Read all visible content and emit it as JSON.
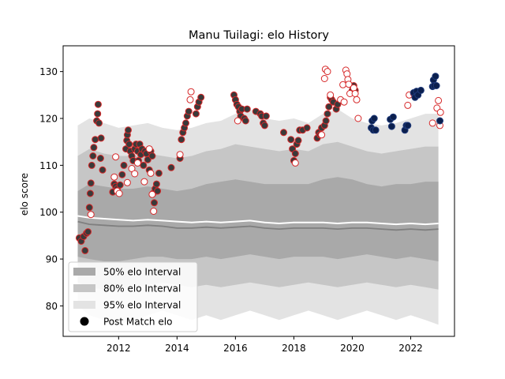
{
  "chart_data": {
    "type": "scatter",
    "title": "Manu Tuilagi: elo History",
    "xlabel": "",
    "ylabel": "elo score",
    "xlim": [
      2010.1,
      2023.5
    ],
    "ylim": [
      73.5,
      135.5
    ],
    "xticks": [
      2012,
      2014,
      2016,
      2018,
      2020,
      2022
    ],
    "yticks": [
      80,
      90,
      100,
      110,
      120,
      130
    ],
    "grid": false,
    "legend_position": "lower-left",
    "legend": [
      {
        "label": "50% elo Interval",
        "color": "#a9a9a9"
      },
      {
        "label": "80% elo Interval",
        "color": "#c6c6c6"
      },
      {
        "label": "95% elo Interval",
        "color": "#e3e3e3"
      },
      {
        "label": "Post Match elo",
        "color": "#000000"
      }
    ],
    "band_x": [
      2010.6,
      2011.0,
      2011.5,
      2012.0,
      2012.5,
      2013.0,
      2013.5,
      2014.0,
      2014.5,
      2015.0,
      2015.5,
      2016.0,
      2016.5,
      2017.0,
      2017.5,
      2018.0,
      2018.5,
      2019.0,
      2019.5,
      2020.0,
      2020.5,
      2021.0,
      2021.5,
      2022.0,
      2022.5,
      2022.95
    ],
    "band_95_upper": [
      118.5,
      120,
      119,
      118,
      118.5,
      119,
      118,
      117.5,
      118,
      119,
      119.5,
      121,
      122,
      120,
      119.5,
      120,
      119,
      121,
      122,
      120,
      119,
      118.5,
      119,
      120,
      121,
      121
    ],
    "band_95_lower": [
      80,
      78,
      77,
      76,
      77,
      78,
      79,
      78,
      77,
      78,
      77,
      78,
      79,
      78,
      77,
      78,
      79,
      78,
      77,
      78,
      79,
      78,
      77,
      78,
      77,
      76
    ],
    "band_80_upper": [
      112,
      113.5,
      112.5,
      112,
      112,
      112.5,
      112,
      111.5,
      112,
      113,
      113.5,
      114.5,
      114,
      113.5,
      113,
      113.5,
      113,
      114.5,
      115,
      114,
      113,
      112.5,
      113,
      113.5,
      114,
      114
    ],
    "band_80_lower": [
      85,
      84,
      83.5,
      83.5,
      84,
      84.5,
      85,
      84.5,
      84,
      84.5,
      84,
      84.5,
      85,
      84.5,
      84,
      84.5,
      85,
      84.5,
      84,
      84.5,
      85,
      84.5,
      84,
      84.5,
      84,
      83.5
    ],
    "band_50_upper": [
      104.5,
      106,
      105.5,
      105,
      105,
      105.5,
      105,
      104.5,
      105,
      106,
      106.5,
      107,
      106.5,
      106,
      106,
      106,
      106,
      107,
      107.5,
      107,
      106,
      105.5,
      106,
      106,
      106.5,
      106.5
    ],
    "band_50_lower": [
      90.5,
      90,
      89.5,
      89.5,
      90,
      90.5,
      90.5,
      90,
      90,
      90.5,
      90,
      90.5,
      91,
      90.5,
      90,
      90.5,
      90.5,
      90.5,
      90,
      90.5,
      91,
      90.5,
      90,
      90.5,
      90,
      89.5
    ],
    "median_line": [
      98,
      97.4,
      97.2,
      97.0,
      97.0,
      97.2,
      97.0,
      96.6,
      96.6,
      96.8,
      96.6,
      96.8,
      97.0,
      96.6,
      96.4,
      96.6,
      96.6,
      96.6,
      96.4,
      96.6,
      96.6,
      96.4,
      96.2,
      96.4,
      96.2,
      96.4
    ],
    "mean_line": [
      99.2,
      98.8,
      98.6,
      98.4,
      98.2,
      98.4,
      98.2,
      98.0,
      97.8,
      98.0,
      97.8,
      98.0,
      98.2,
      97.8,
      97.6,
      97.8,
      97.8,
      97.8,
      97.6,
      97.8,
      97.8,
      97.6,
      97.4,
      97.6,
      97.4,
      97.6
    ],
    "series": [
      {
        "marker": "filled-dark-grey",
        "points": [
          [
            2010.65,
            94.5
          ],
          [
            2010.72,
            93.8
          ],
          [
            2010.8,
            94.8
          ],
          [
            2010.85,
            91.8
          ],
          [
            2010.9,
            95.5
          ],
          [
            2010.95,
            95.8
          ],
          [
            2011.0,
            101
          ],
          [
            2011.03,
            104
          ],
          [
            2011.05,
            106.2
          ],
          [
            2011.08,
            110
          ],
          [
            2011.12,
            112
          ],
          [
            2011.15,
            113.8
          ],
          [
            2011.2,
            115.5
          ],
          [
            2011.25,
            119.5
          ],
          [
            2011.28,
            121
          ],
          [
            2011.3,
            123
          ],
          [
            2011.33,
            119
          ],
          [
            2011.38,
            111.5
          ],
          [
            2011.4,
            115.8
          ],
          [
            2011.45,
            109
          ],
          [
            2011.8,
            104.3
          ],
          [
            2011.85,
            106
          ],
          [
            2011.9,
            105.5
          ],
          [
            2011.95,
            105
          ],
          [
            2012.05,
            105.8
          ],
          [
            2012.12,
            108
          ],
          [
            2012.18,
            110
          ],
          [
            2012.25,
            113.5
          ],
          [
            2012.28,
            115.3
          ],
          [
            2012.3,
            116.5
          ],
          [
            2012.33,
            117.5
          ],
          [
            2012.36,
            114.5
          ],
          [
            2012.4,
            113
          ],
          [
            2012.45,
            112
          ],
          [
            2012.5,
            111
          ],
          [
            2012.55,
            113.5
          ],
          [
            2012.6,
            114.5
          ],
          [
            2012.65,
            113
          ],
          [
            2012.68,
            111
          ],
          [
            2012.72,
            114.5
          ],
          [
            2012.76,
            112.3
          ],
          [
            2012.8,
            113.5
          ],
          [
            2012.85,
            110
          ],
          [
            2012.9,
            113
          ],
          [
            2012.95,
            112.5
          ],
          [
            2013.0,
            111.2
          ],
          [
            2013.05,
            109
          ],
          [
            2013.1,
            113
          ],
          [
            2013.15,
            112
          ],
          [
            2013.18,
            104
          ],
          [
            2013.22,
            102
          ],
          [
            2013.25,
            105
          ],
          [
            2013.3,
            106
          ],
          [
            2013.33,
            104.5
          ],
          [
            2013.38,
            108.3
          ],
          [
            2013.8,
            109.5
          ],
          [
            2014.1,
            111.5
          ],
          [
            2014.15,
            115.5
          ],
          [
            2014.2,
            117
          ],
          [
            2014.25,
            118
          ],
          [
            2014.3,
            119
          ],
          [
            2014.35,
            120.5
          ],
          [
            2014.4,
            121.5
          ],
          [
            2014.65,
            121
          ],
          [
            2014.7,
            122.5
          ],
          [
            2014.75,
            123.5
          ],
          [
            2014.82,
            124.5
          ],
          [
            2015.95,
            125
          ],
          [
            2016.0,
            124
          ],
          [
            2016.05,
            123
          ],
          [
            2016.1,
            122.5
          ],
          [
            2016.15,
            121.5
          ],
          [
            2016.18,
            120.5
          ],
          [
            2016.22,
            122
          ],
          [
            2016.3,
            120
          ],
          [
            2016.35,
            119.5
          ],
          [
            2016.4,
            122
          ],
          [
            2016.7,
            121.5
          ],
          [
            2016.85,
            121
          ],
          [
            2016.9,
            120.5
          ],
          [
            2016.95,
            119
          ],
          [
            2017.0,
            118.5
          ],
          [
            2017.05,
            120.5
          ],
          [
            2017.65,
            117
          ],
          [
            2017.9,
            115.5
          ],
          [
            2017.95,
            113.5
          ],
          [
            2018.0,
            111
          ],
          [
            2018.05,
            112.5
          ],
          [
            2018.1,
            114.5
          ],
          [
            2018.15,
            115.3
          ],
          [
            2018.2,
            117.5
          ],
          [
            2018.3,
            117.5
          ],
          [
            2018.45,
            118
          ],
          [
            2018.8,
            115.8
          ],
          [
            2018.85,
            117
          ],
          [
            2018.9,
            116.5
          ],
          [
            2018.95,
            118
          ],
          [
            2019.05,
            118.5
          ],
          [
            2019.1,
            119.5
          ],
          [
            2019.15,
            121
          ],
          [
            2019.2,
            122.5
          ],
          [
            2019.25,
            124.5
          ],
          [
            2019.3,
            124
          ],
          [
            2019.35,
            123.5
          ],
          [
            2019.45,
            122
          ],
          [
            2019.5,
            123
          ],
          [
            2020.0,
            126
          ],
          [
            2020.05,
            127
          ],
          [
            2020.1,
            126
          ]
        ]
      },
      {
        "marker": "open-red",
        "points": [
          [
            2011.05,
            99.5
          ],
          [
            2011.85,
            107.5
          ],
          [
            2011.9,
            111.8
          ],
          [
            2011.95,
            104.5
          ],
          [
            2012.02,
            104
          ],
          [
            2012.3,
            106.3
          ],
          [
            2012.45,
            109.3
          ],
          [
            2012.55,
            108.2
          ],
          [
            2012.65,
            110.5
          ],
          [
            2012.88,
            106.5
          ],
          [
            2013.05,
            113.5
          ],
          [
            2013.1,
            108.3
          ],
          [
            2013.15,
            103.8
          ],
          [
            2013.2,
            100.2
          ],
          [
            2014.1,
            112.3
          ],
          [
            2014.45,
            124
          ],
          [
            2014.48,
            125.7
          ],
          [
            2016.08,
            119.5
          ],
          [
            2018.05,
            110.5
          ],
          [
            2018.95,
            116.5
          ],
          [
            2019.05,
            128.5
          ],
          [
            2019.08,
            130.5
          ],
          [
            2019.15,
            130
          ],
          [
            2019.25,
            125
          ],
          [
            2019.6,
            124
          ],
          [
            2019.68,
            127.2
          ],
          [
            2019.72,
            123.5
          ],
          [
            2019.78,
            130.3
          ],
          [
            2019.82,
            129.5
          ],
          [
            2019.85,
            128.3
          ],
          [
            2019.88,
            127.3
          ],
          [
            2019.92,
            125.3
          ],
          [
            2020.05,
            126.5
          ],
          [
            2020.1,
            125.3
          ],
          [
            2020.15,
            124
          ],
          [
            2020.2,
            120
          ],
          [
            2021.9,
            122.8
          ],
          [
            2021.95,
            125
          ],
          [
            2022.1,
            125.3
          ],
          [
            2022.75,
            119
          ],
          [
            2022.9,
            122.2
          ],
          [
            2022.95,
            123.8
          ],
          [
            2023.0,
            118.5
          ],
          [
            2023.02,
            121.3
          ]
        ]
      },
      {
        "marker": "filled-navy",
        "points": [
          [
            2020.65,
            118
          ],
          [
            2020.68,
            119.5
          ],
          [
            2020.72,
            117.5
          ],
          [
            2020.75,
            120
          ],
          [
            2020.8,
            117.5
          ],
          [
            2021.3,
            119.8
          ],
          [
            2021.35,
            118.3
          ],
          [
            2021.4,
            120.3
          ],
          [
            2021.8,
            117.5
          ],
          [
            2021.85,
            118.5
          ],
          [
            2021.9,
            118.5
          ],
          [
            2022.1,
            125.5
          ],
          [
            2022.15,
            124.5
          ],
          [
            2022.2,
            125.8
          ],
          [
            2022.25,
            125
          ],
          [
            2022.35,
            126
          ],
          [
            2022.75,
            126.8
          ],
          [
            2022.78,
            128.2
          ],
          [
            2022.8,
            127
          ],
          [
            2022.85,
            129
          ],
          [
            2022.88,
            127
          ],
          [
            2023.0,
            119.5
          ]
        ]
      }
    ]
  }
}
